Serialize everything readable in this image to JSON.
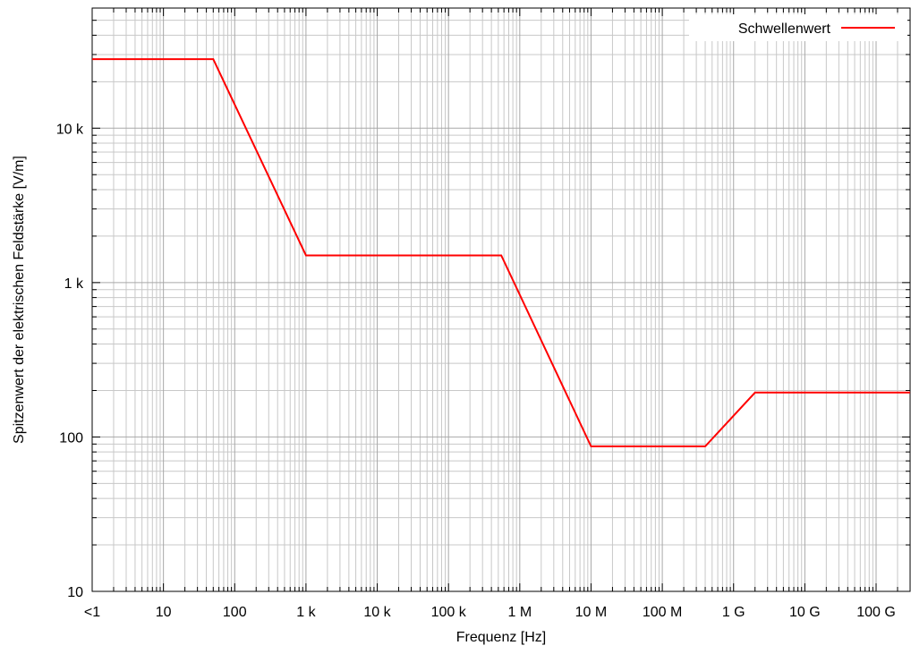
{
  "chart_data": {
    "type": "line",
    "xscale": "log",
    "yscale": "log",
    "xlabel": "Frequenz [Hz]",
    "ylabel": "Spitzenwert der elektrischen Feldstärke [V/m]",
    "xlim": [
      1,
      300000000000
    ],
    "ylim": [
      10,
      60000
    ],
    "grid": true,
    "legend_position": "top-right",
    "x_ticks": [
      {
        "value": 1,
        "label": "<1"
      },
      {
        "value": 10,
        "label": "10"
      },
      {
        "value": 100,
        "label": "100"
      },
      {
        "value": 1000,
        "label": "1 k"
      },
      {
        "value": 10000,
        "label": "10 k"
      },
      {
        "value": 100000,
        "label": "100 k"
      },
      {
        "value": 1000000,
        "label": "1 M"
      },
      {
        "value": 10000000,
        "label": "10 M"
      },
      {
        "value": 100000000,
        "label": "100 M"
      },
      {
        "value": 1000000000,
        "label": "1 G"
      },
      {
        "value": 10000000000,
        "label": "10 G"
      },
      {
        "value": 100000000000,
        "label": "100 G"
      }
    ],
    "y_ticks": [
      {
        "value": 10,
        "label": "10"
      },
      {
        "value": 100,
        "label": "100"
      },
      {
        "value": 1000,
        "label": "1 k"
      },
      {
        "value": 10000,
        "label": "10 k"
      }
    ],
    "series": [
      {
        "name": "Schwellenwert",
        "color": "#ff0000",
        "points": [
          [
            1,
            28000
          ],
          [
            50,
            28000
          ],
          [
            1000,
            1500
          ],
          [
            550000,
            1500
          ],
          [
            10000000,
            87
          ],
          [
            400000000,
            87
          ],
          [
            2000000000,
            194
          ],
          [
            300000000000,
            194
          ]
        ]
      }
    ]
  }
}
